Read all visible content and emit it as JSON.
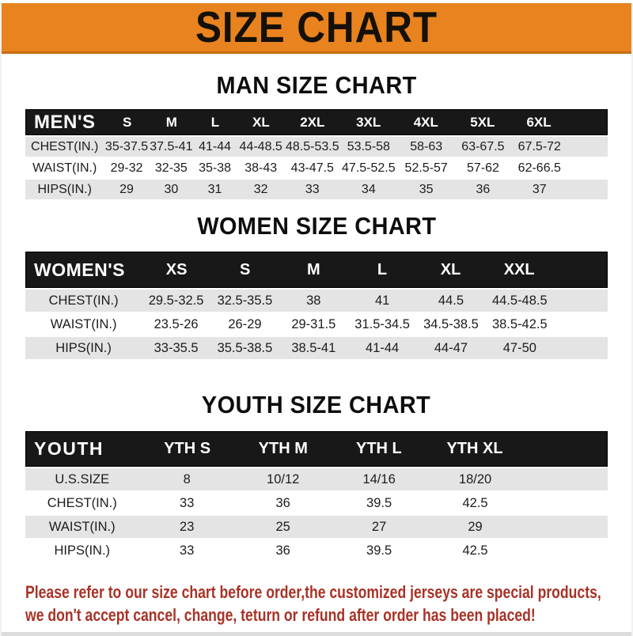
{
  "colors": {
    "banner-orange": "#E8831F",
    "banner-orange-dark": "#C96A12",
    "bar-black": "#181818",
    "row-gray": "#E4E4E4",
    "note-red": "#A93226"
  },
  "header": {
    "title": "SIZE CHART"
  },
  "men": {
    "section_title": "MAN SIZE CHART",
    "header_label": "MEN'S",
    "sizes": [
      "S",
      "M",
      "L",
      "XL",
      "2XL",
      "3XL",
      "4XL",
      "5XL",
      "6XL"
    ],
    "rows": [
      {
        "label": "CHEST(IN.)",
        "values": [
          "35-37.5",
          "37.5-41",
          "41-44",
          "44-48.5",
          "48.5-53.5",
          "53.5-58",
          "58-63",
          "63-67.5",
          "67.5-72"
        ]
      },
      {
        "label": "WAIST(IN.)",
        "values": [
          "29-32",
          "32-35",
          "35-38",
          "38-43",
          "43-47.5",
          "47.5-52.5",
          "52.5-57",
          "57-62",
          "62-66.5"
        ]
      },
      {
        "label": "HIPS(IN.)",
        "values": [
          "29",
          "30",
          "31",
          "32",
          "33",
          "34",
          "35",
          "36",
          "37"
        ]
      }
    ]
  },
  "women": {
    "section_title": "WOMEN SIZE CHART",
    "header_label": "WOMEN'S",
    "sizes": [
      "XS",
      "S",
      "M",
      "L",
      "XL",
      "XXL"
    ],
    "rows": [
      {
        "label": "CHEST(IN.)",
        "values": [
          "29.5-32.5",
          "32.5-35.5",
          "38",
          "41",
          "44.5",
          "44.5-48.5"
        ]
      },
      {
        "label": "WAIST(IN.)",
        "values": [
          "23.5-26",
          "26-29",
          "29-31.5",
          "31.5-34.5",
          "34.5-38.5",
          "38.5-42.5"
        ]
      },
      {
        "label": "HIPS(IN.)",
        "values": [
          "33-35.5",
          "35.5-38.5",
          "38.5-41",
          "41-44",
          "44-47",
          "47-50"
        ]
      }
    ]
  },
  "youth": {
    "section_title": "YOUTH SIZE CHART",
    "header_label": "YOUTH",
    "sizes": [
      "YTH S",
      "YTH M",
      "YTH L",
      "YTH XL"
    ],
    "rows": [
      {
        "label": "U.S.SIZE",
        "values": [
          "8",
          "10/12",
          "14/16",
          "18/20"
        ]
      },
      {
        "label": "CHEST(IN.)",
        "values": [
          "33",
          "36",
          "39.5",
          "42.5"
        ]
      },
      {
        "label": "WAIST(IN.)",
        "values": [
          "23",
          "25",
          "27",
          "29"
        ]
      },
      {
        "label": "HIPS(IN.)",
        "values": [
          "33",
          "36",
          "39.5",
          "42.5"
        ]
      }
    ]
  },
  "footer": {
    "line1": "Please refer to our size chart before order,the customized jerseys are special products,",
    "line2": "we don't accept cancel, change, teturn or refund after order has been placed!"
  }
}
